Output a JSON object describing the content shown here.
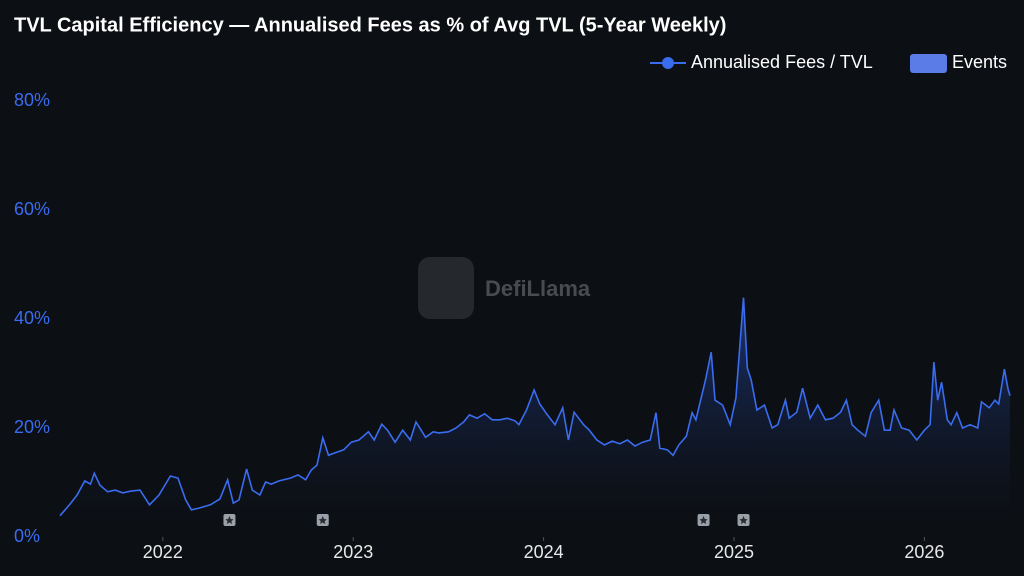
{
  "chart_data": {
    "type": "line",
    "title": "TVL Capital Efficiency — Annualised Fees as % of Avg TVL (5-Year Weekly)",
    "watermark": "DefiLlama",
    "xlim": [
      2021.46,
      2026.46
    ],
    "xticks": [
      2022,
      2023,
      2024,
      2025,
      2026
    ],
    "ylim": [
      0,
      80
    ],
    "yticks": [
      {
        "value": 0,
        "label": "0%"
      },
      {
        "value": 20,
        "label": "20%"
      },
      {
        "value": 40,
        "label": "40%"
      },
      {
        "value": 60,
        "label": "60%"
      },
      {
        "value": 80,
        "label": "80%"
      }
    ],
    "grid": false,
    "legend": "top-right",
    "series": [
      {
        "name": "Annualised Fees / TVL",
        "color": "#3a6cf0",
        "x": [
          2021.46,
          2021.51,
          2021.55,
          2021.59,
          2021.62,
          2021.64,
          2021.67,
          2021.71,
          2021.75,
          2021.79,
          2021.83,
          2021.88,
          2021.93,
          2021.98,
          2022.04,
          2022.08,
          2022.12,
          2022.15,
          2022.19,
          2022.25,
          2022.3,
          2022.34,
          2022.37,
          2022.4,
          2022.44,
          2022.47,
          2022.51,
          2022.54,
          2022.57,
          2022.61,
          2022.67,
          2022.71,
          2022.75,
          2022.78,
          2022.81,
          2022.84,
          2022.87,
          2022.9,
          2022.95,
          2022.99,
          2023.03,
          2023.08,
          2023.11,
          2023.15,
          2023.18,
          2023.22,
          2023.26,
          2023.3,
          2023.33,
          2023.38,
          2023.42,
          2023.45,
          2023.5,
          2023.54,
          2023.58,
          2023.61,
          2023.65,
          2023.69,
          2023.73,
          2023.77,
          2023.81,
          2023.85,
          2023.87,
          2023.91,
          2023.95,
          2023.98,
          2024.02,
          2024.06,
          2024.1,
          2024.13,
          2024.16,
          2024.21,
          2024.24,
          2024.28,
          2024.32,
          2024.36,
          2024.4,
          2024.44,
          2024.48,
          2024.52,
          2024.56,
          2024.59,
          2024.61,
          2024.65,
          2024.68,
          2024.71,
          2024.75,
          2024.78,
          2024.8,
          2024.85,
          2024.88,
          2024.9,
          2024.94,
          2024.98,
          2025.01,
          2025.05,
          2025.07,
          2025.09,
          2025.12,
          2025.16,
          2025.2,
          2025.23,
          2025.27,
          2025.29,
          2025.33,
          2025.36,
          2025.4,
          2025.44,
          2025.48,
          2025.52,
          2025.56,
          2025.59,
          2025.62,
          2025.65,
          2025.69,
          2025.72,
          2025.76,
          2025.79,
          2025.82,
          2025.84,
          2025.88,
          2025.92,
          2025.96,
          2026.0,
          2026.03,
          2026.05,
          2026.07,
          2026.09,
          2026.12,
          2026.14,
          2026.17,
          2026.2,
          2026.24,
          2026.28,
          2026.3,
          2026.34,
          2026.37,
          2026.39,
          2026.42,
          2026.44,
          2026.45
        ],
        "values": [
          3.9,
          5.9,
          7.7,
          10.3,
          9.7,
          11.7,
          9.5,
          8.3,
          8.6,
          8.1,
          8.4,
          8.6,
          5.9,
          7.7,
          11.2,
          10.8,
          6.8,
          5.0,
          5.3,
          5.9,
          7.0,
          10.5,
          6.2,
          6.8,
          12.5,
          8.6,
          7.7,
          10.1,
          9.7,
          10.3,
          10.8,
          11.4,
          10.5,
          12.3,
          13.2,
          18.2,
          15.0,
          15.4,
          16.0,
          17.4,
          17.8,
          19.3,
          17.8,
          20.7,
          19.6,
          17.4,
          19.6,
          17.8,
          21.1,
          18.3,
          19.3,
          19.1,
          19.3,
          20.0,
          21.1,
          22.4,
          21.8,
          22.6,
          21.5,
          21.5,
          21.8,
          21.3,
          20.6,
          23.3,
          27.0,
          24.4,
          22.4,
          20.6,
          23.7,
          17.8,
          22.9,
          20.6,
          19.6,
          17.8,
          16.9,
          17.6,
          17.1,
          17.8,
          16.7,
          17.4,
          17.8,
          22.8,
          16.3,
          16.0,
          15.0,
          16.9,
          18.5,
          22.8,
          21.5,
          28.8,
          33.9,
          25.1,
          24.2,
          20.6,
          25.5,
          43.9,
          31.0,
          28.8,
          23.3,
          24.2,
          20.0,
          20.6,
          25.1,
          21.8,
          22.9,
          27.3,
          21.8,
          24.2,
          21.5,
          21.8,
          22.9,
          25.1,
          20.6,
          19.6,
          18.5,
          22.8,
          25.1,
          19.6,
          19.6,
          23.3,
          20.0,
          19.6,
          17.8,
          19.6,
          20.6,
          32.1,
          25.1,
          28.4,
          21.5,
          20.6,
          22.8,
          20.0,
          20.6,
          20.0,
          24.8,
          23.7,
          25.1,
          24.4,
          30.8,
          27.0,
          25.9
        ]
      },
      {
        "name": "Events",
        "color": "#5b7be6",
        "x": [
          2022.35,
          2022.84,
          2024.84,
          2025.05
        ]
      }
    ]
  }
}
